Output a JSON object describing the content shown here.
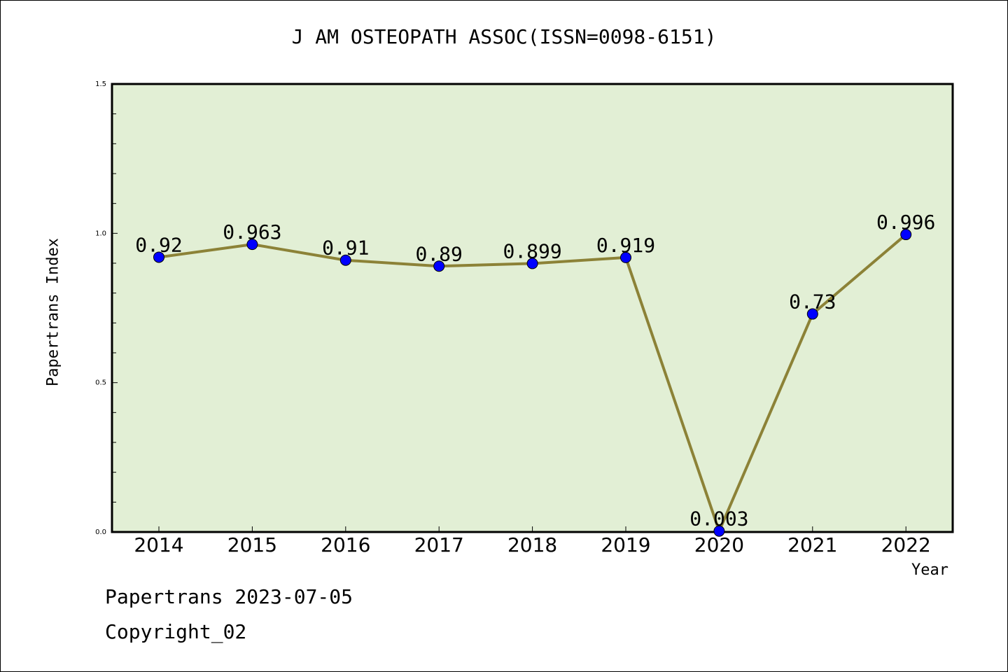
{
  "chart_data": {
    "type": "line",
    "title": "J AM OSTEOPATH ASSOC(ISSN=0098-6151)",
    "xlabel": "Year",
    "ylabel": "Papertrans Index",
    "categories": [
      "2014",
      "2015",
      "2016",
      "2017",
      "2018",
      "2019",
      "2020",
      "2021",
      "2022"
    ],
    "series": [
      {
        "values": [
          0.92,
          0.963,
          0.91,
          0.89,
          0.899,
          0.919,
          0.003,
          0.73,
          0.996
        ],
        "labels": [
          "0.92",
          "0.963",
          "0.91",
          "0.89",
          "0.899",
          "0.919",
          "0.003",
          "0.73",
          "0.996"
        ]
      }
    ],
    "ylim": [
      0,
      1.5
    ],
    "yticks": [
      "0.0",
      "0.5",
      "1.0",
      "1.5"
    ],
    "grid": false,
    "colors": {
      "plot_bg": "#e2efd5",
      "line": "#8c8237",
      "marker": "#0000ff"
    }
  },
  "footer": {
    "line1": "Papertrans 2023-07-05",
    "line2": "Copyright_02"
  }
}
